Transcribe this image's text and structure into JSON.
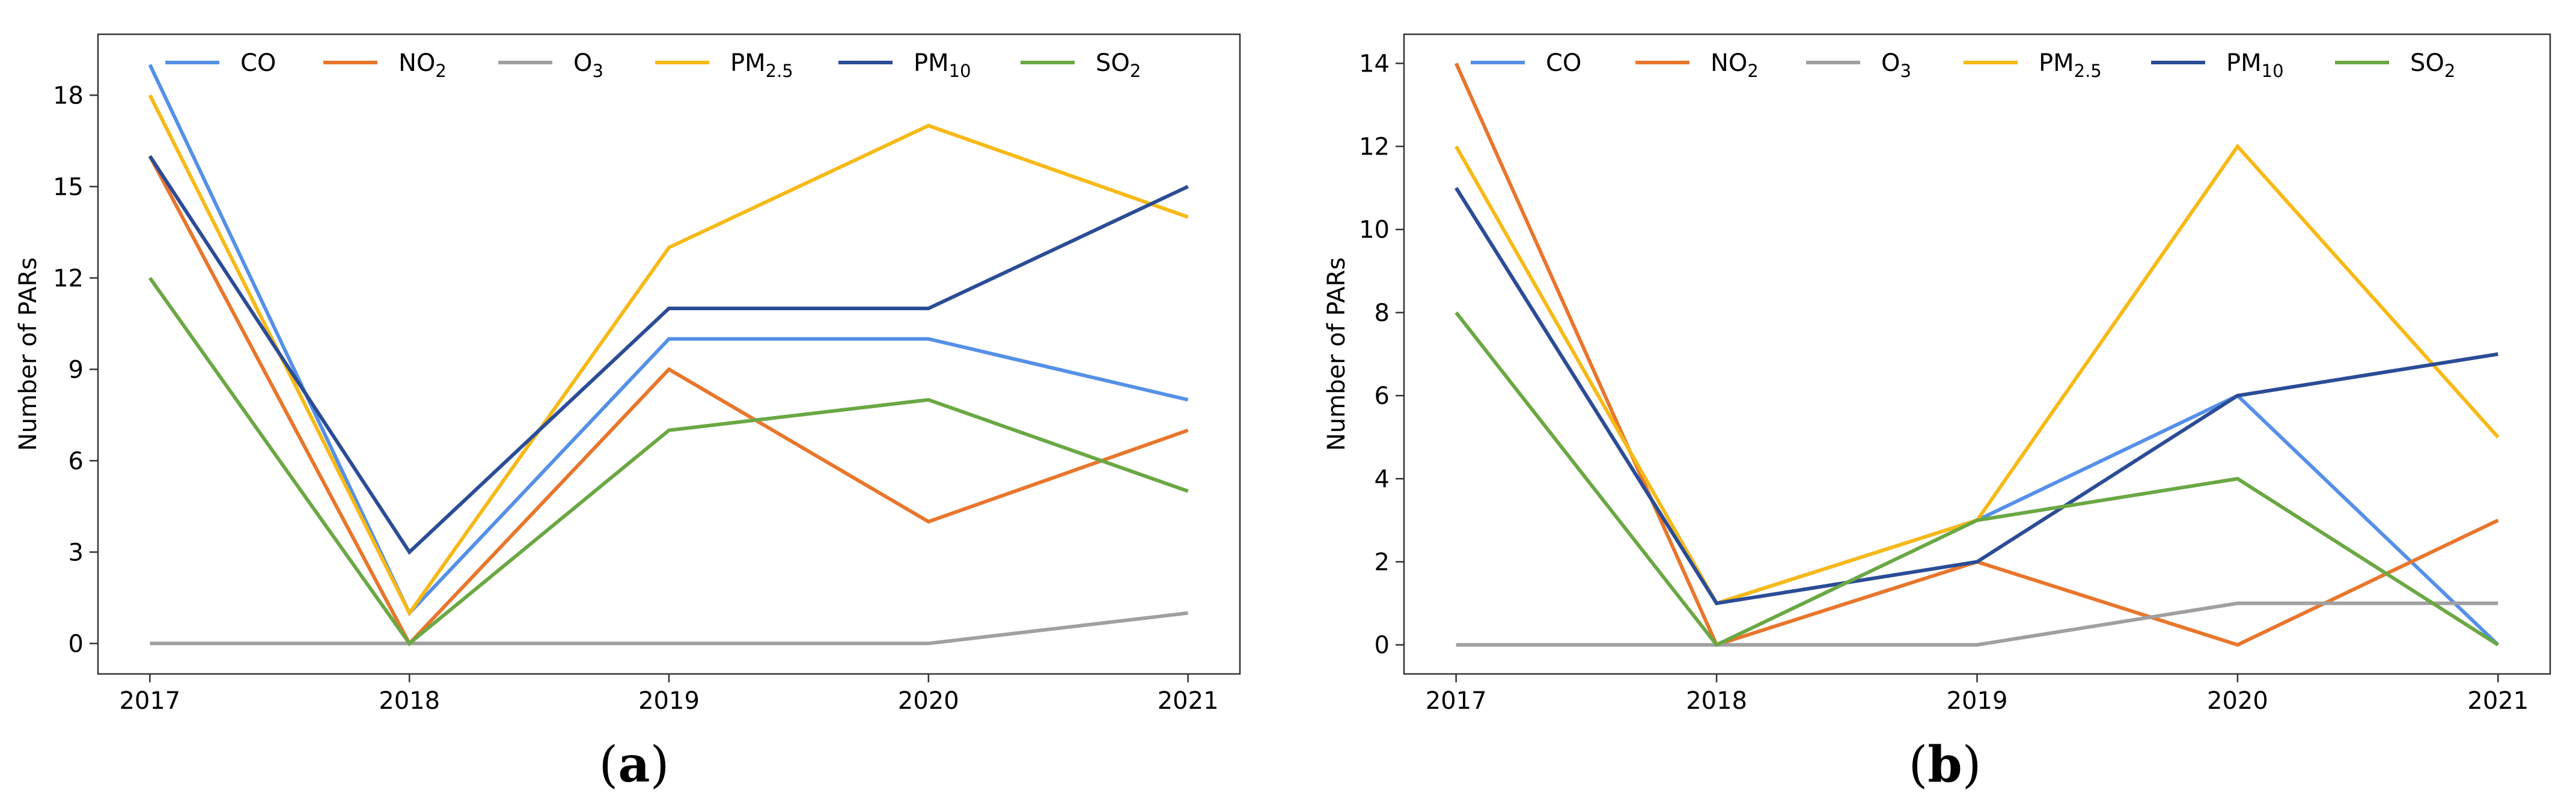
{
  "chart_data": [
    {
      "type": "line",
      "panel_label": "(a)",
      "panel_letter": "a",
      "ylabel": "Number of PARs",
      "xlabel": "",
      "x": [
        2017,
        2018,
        2019,
        2020,
        2021
      ],
      "x_tick_labels": [
        "2017",
        "2018",
        "2019",
        "2020",
        "2021"
      ],
      "ylim": [
        -1,
        20
      ],
      "y_ticks": [
        0,
        3,
        6,
        9,
        12,
        15,
        18
      ],
      "legend_position": "top",
      "series": [
        {
          "name": "CO",
          "base": "CO",
          "sub": "",
          "color": "#5590e8",
          "values": [
            19,
            1,
            10,
            10,
            8
          ]
        },
        {
          "name": "NO2",
          "base": "NO",
          "sub": "2",
          "color": "#e8762c",
          "values": [
            16,
            0,
            9,
            4,
            7
          ]
        },
        {
          "name": "O3",
          "base": "O",
          "sub": "3",
          "color": "#a0a0a0",
          "values": [
            0,
            0,
            0,
            0,
            1
          ]
        },
        {
          "name": "PM2.5",
          "base": "PM",
          "sub": "2.5",
          "color": "#f7b916",
          "values": [
            18,
            1,
            13,
            17,
            14
          ]
        },
        {
          "name": "PM10",
          "base": "PM",
          "sub": "10",
          "color": "#2b4c96",
          "values": [
            16,
            3,
            11,
            11,
            15
          ]
        },
        {
          "name": "SO2",
          "base": "SO",
          "sub": "2",
          "color": "#6aa843",
          "values": [
            12,
            0,
            7,
            8,
            5
          ]
        }
      ]
    },
    {
      "type": "line",
      "panel_label": "(b)",
      "panel_letter": "b",
      "ylabel": "Number of PARs",
      "xlabel": "",
      "x": [
        2017,
        2018,
        2019,
        2020,
        2021
      ],
      "x_tick_labels": [
        "2017",
        "2018",
        "2019",
        "2020",
        "2021"
      ],
      "ylim": [
        -0.7,
        14.7
      ],
      "y_ticks": [
        0,
        2,
        4,
        6,
        8,
        10,
        12,
        14
      ],
      "legend_position": "top",
      "series": [
        {
          "name": "CO",
          "base": "CO",
          "sub": "",
          "color": "#5590e8",
          "values": [
            11,
            1,
            3,
            6,
            0
          ]
        },
        {
          "name": "NO2",
          "base": "NO",
          "sub": "2",
          "color": "#e8762c",
          "values": [
            14,
            0,
            2,
            0,
            3
          ]
        },
        {
          "name": "O3",
          "base": "O",
          "sub": "3",
          "color": "#a0a0a0",
          "values": [
            0,
            0,
            0,
            1,
            1
          ]
        },
        {
          "name": "PM2.5",
          "base": "PM",
          "sub": "2.5",
          "color": "#f7b916",
          "values": [
            12,
            1,
            3,
            12,
            5
          ]
        },
        {
          "name": "PM10",
          "base": "PM",
          "sub": "10",
          "color": "#2b4c96",
          "values": [
            11,
            1,
            2,
            6,
            7
          ]
        },
        {
          "name": "SO2",
          "base": "SO",
          "sub": "2",
          "color": "#6aa843",
          "values": [
            8,
            0,
            3,
            4,
            0
          ]
        }
      ]
    }
  ]
}
